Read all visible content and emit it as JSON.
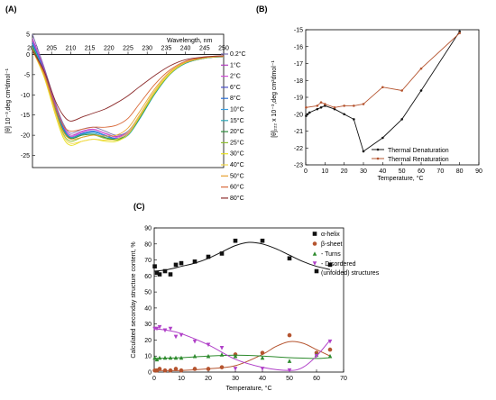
{
  "panels": {
    "A": {
      "label": "(A)"
    },
    "B": {
      "label": "(B)"
    },
    "C": {
      "label": "(C)"
    }
  },
  "chart_data": [
    {
      "panel": "A",
      "type": "line",
      "xlabel": "Wavelength, nm",
      "ylabel": "[θ] 10⁻³,deg cm²dmol⁻¹",
      "xlim": [
        200,
        250
      ],
      "ylim": [
        -28,
        5
      ],
      "xticks": [
        200,
        205,
        210,
        215,
        220,
        225,
        230,
        235,
        240,
        245,
        250
      ],
      "yticks": [
        5,
        0,
        -5,
        -10,
        -15,
        -20,
        -25
      ],
      "legend_position": "right",
      "x": [
        200,
        203,
        206,
        208,
        210,
        213,
        216,
        219,
        222,
        225,
        228,
        232,
        236,
        240,
        245,
        250
      ],
      "series": [
        {
          "name": "0.2°C",
          "color": "#7b6fb0",
          "values": [
            5.0,
            -3.0,
            -12.0,
            -17.0,
            -19.5,
            -18.5,
            -18.0,
            -19.0,
            -20.0,
            -19.0,
            -15.0,
            -9.0,
            -4.5,
            -2.0,
            -0.8,
            -0.5
          ]
        },
        {
          "name": "1°C",
          "color": "#b23fc0",
          "values": [
            4.0,
            -3.5,
            -12.5,
            -17.5,
            -20.0,
            -19.0,
            -18.5,
            -19.5,
            -20.3,
            -19.2,
            -15.2,
            -9.2,
            -4.6,
            -2.0,
            -0.8,
            -0.5
          ]
        },
        {
          "name": "2°C",
          "color": "#d24fd8",
          "values": [
            3.5,
            -4.0,
            -13.0,
            -18.0,
            -20.3,
            -19.2,
            -18.6,
            -19.6,
            -20.5,
            -19.5,
            -15.5,
            -9.4,
            -4.7,
            -2.1,
            -0.9,
            -0.5
          ]
        },
        {
          "name": "6°C",
          "color": "#4a4fc8",
          "values": [
            3.0,
            -4.0,
            -13.0,
            -18.0,
            -20.5,
            -19.5,
            -19.0,
            -20.0,
            -20.8,
            -19.8,
            -15.8,
            -9.6,
            -4.8,
            -2.1,
            -0.9,
            -0.6
          ]
        },
        {
          "name": "8°C",
          "color": "#2b6fd6",
          "values": [
            3.0,
            -4.2,
            -13.2,
            -18.2,
            -20.6,
            -19.6,
            -19.0,
            -20.0,
            -20.8,
            -19.8,
            -15.8,
            -9.6,
            -4.8,
            -2.2,
            -0.9,
            -0.6
          ]
        },
        {
          "name": "10°C",
          "color": "#3a9ee0",
          "values": [
            2.5,
            -4.5,
            -13.5,
            -18.5,
            -20.8,
            -19.8,
            -19.2,
            -20.2,
            -21.0,
            -20.0,
            -16.0,
            -9.8,
            -4.9,
            -2.2,
            -0.9,
            -0.6
          ]
        },
        {
          "name": "15°C",
          "color": "#2fa8b8",
          "values": [
            2.0,
            -4.5,
            -13.5,
            -18.5,
            -20.5,
            -19.8,
            -19.5,
            -20.5,
            -21.2,
            -20.0,
            -16.0,
            -9.8,
            -4.9,
            -2.2,
            -0.9,
            -0.6
          ]
        },
        {
          "name": "20°C",
          "color": "#2e8b3a",
          "values": [
            2.0,
            -4.8,
            -13.8,
            -18.8,
            -20.8,
            -20.0,
            -19.8,
            -20.6,
            -21.0,
            -19.8,
            -15.8,
            -9.6,
            -4.8,
            -2.1,
            -0.9,
            -0.5
          ]
        },
        {
          "name": "25°C",
          "color": "#8fbf2f",
          "values": [
            1.5,
            -5.0,
            -14.0,
            -19.5,
            -21.5,
            -20.5,
            -20.0,
            -20.8,
            -21.2,
            -19.8,
            -15.6,
            -9.5,
            -4.8,
            -2.1,
            -0.9,
            -0.5
          ]
        },
        {
          "name": "30°C",
          "color": "#e8e020",
          "values": [
            1.0,
            -5.5,
            -15.0,
            -20.5,
            -22.5,
            -21.5,
            -21.0,
            -21.5,
            -21.5,
            -19.8,
            -15.5,
            -9.4,
            -4.7,
            -2.0,
            -0.8,
            -0.5
          ]
        },
        {
          "name": "40°C",
          "color": "#f2d84a",
          "values": [
            1.0,
            -5.0,
            -14.5,
            -20.0,
            -22.0,
            -21.5,
            -21.0,
            -21.2,
            -21.0,
            -19.2,
            -15.0,
            -9.0,
            -4.5,
            -2.0,
            -0.8,
            -0.5
          ]
        },
        {
          "name": "50°C",
          "color": "#e8a030",
          "values": [
            1.0,
            -5.0,
            -14.0,
            -19.0,
            -21.0,
            -20.5,
            -20.0,
            -20.2,
            -20.0,
            -18.2,
            -14.2,
            -8.5,
            -4.2,
            -1.9,
            -0.8,
            -0.5
          ]
        },
        {
          "name": "60°C",
          "color": "#d86a3a",
          "values": [
            1.0,
            -4.5,
            -13.0,
            -17.5,
            -19.0,
            -18.5,
            -18.0,
            -18.0,
            -17.5,
            -15.8,
            -12.2,
            -7.4,
            -3.8,
            -1.7,
            -0.7,
            -0.4
          ]
        },
        {
          "name": "80°C",
          "color": "#8b2a2a",
          "values": [
            1.0,
            -4.0,
            -11.5,
            -15.0,
            -16.5,
            -15.5,
            -14.5,
            -13.5,
            -12.0,
            -10.2,
            -8.0,
            -5.2,
            -2.8,
            -1.3,
            -0.6,
            -0.3
          ]
        }
      ]
    },
    {
      "panel": "B",
      "type": "line",
      "xlabel": "Temperature, °C",
      "ylabel": "[θ]₂₂₂ x 10⁻³,deg cm²dmol⁻¹",
      "xlim": [
        0,
        90
      ],
      "ylim": [
        -23,
        -15
      ],
      "xticks": [
        0,
        10,
        20,
        30,
        40,
        50,
        60,
        70,
        80,
        90
      ],
      "yticks": [
        -15,
        -16,
        -17,
        -18,
        -19,
        -20,
        -21,
        -22,
        -23
      ],
      "legend_position": "bottom-right",
      "series": [
        {
          "name": "Thermal Denaturation",
          "color": "#111111",
          "x": [
            0.2,
            1,
            2,
            6,
            8,
            10,
            15,
            20,
            25,
            30,
            40,
            50,
            60,
            80
          ],
          "values": [
            -20.1,
            -20.0,
            -19.9,
            -19.7,
            -19.6,
            -19.5,
            -19.7,
            -20.0,
            -20.3,
            -22.2,
            -21.4,
            -20.3,
            -18.6,
            -15.1
          ]
        },
        {
          "name": "Thermal Renaturation",
          "color": "#b5542f",
          "x": [
            0.2,
            6,
            8,
            10,
            15,
            20,
            25,
            30,
            40,
            50,
            60,
            80
          ],
          "values": [
            -19.6,
            -19.5,
            -19.3,
            -19.4,
            -19.6,
            -19.5,
            -19.5,
            -19.4,
            -18.4,
            -18.6,
            -17.3,
            -15.2
          ]
        }
      ]
    },
    {
      "panel": "C",
      "type": "scatter",
      "xlabel": "Temperature, °C",
      "ylabel": "Calculated seconday structure content, %",
      "xlim": [
        0,
        70
      ],
      "ylim": [
        0,
        90
      ],
      "xticks": [
        0,
        10,
        20,
        30,
        40,
        50,
        60,
        70
      ],
      "yticks": [
        0,
        10,
        20,
        30,
        40,
        50,
        60,
        70,
        80,
        90
      ],
      "legend_position": "top-right",
      "series": [
        {
          "name": "α-helix",
          "marker": "square",
          "color": "#111111",
          "x": [
            0.2,
            1,
            2,
            4,
            6,
            8,
            10,
            15,
            20,
            25,
            30,
            40,
            50,
            60,
            65
          ],
          "values": [
            66,
            62,
            61,
            63,
            61,
            67,
            68,
            69,
            72,
            74,
            82,
            82,
            71,
            63,
            67
          ],
          "fit_x": [
            0,
            5,
            10,
            15,
            20,
            25,
            30,
            35,
            40,
            45,
            50,
            55,
            60,
            65
          ],
          "fit_values": [
            63,
            64,
            66,
            68,
            71,
            75,
            79,
            81,
            80,
            77,
            73,
            69,
            66,
            64
          ]
        },
        {
          "name": "β-sheet",
          "marker": "circle",
          "color": "#b5542f",
          "x": [
            0.2,
            1,
            2,
            4,
            6,
            8,
            10,
            15,
            20,
            25,
            30,
            40,
            50,
            60,
            65
          ],
          "values": [
            1,
            1,
            2,
            1,
            1,
            2,
            1,
            2,
            2,
            3,
            11,
            12,
            23,
            12,
            14
          ],
          "fit_x": [
            0,
            10,
            20,
            30,
            40,
            45,
            50,
            55,
            60,
            65
          ],
          "fit_values": [
            1,
            1,
            2,
            4,
            11,
            16,
            19,
            18,
            14,
            10
          ]
        },
        {
          "name": "- Turns",
          "marker": "triangle-up",
          "color": "#2e8b2e",
          "x": [
            0.2,
            1,
            2,
            4,
            6,
            8,
            10,
            15,
            20,
            25,
            30,
            40,
            50,
            60,
            65
          ],
          "values": [
            9,
            8,
            9,
            9,
            9,
            9,
            9,
            10,
            10,
            11,
            10,
            9,
            7,
            11,
            10
          ],
          "fit_x": [
            0,
            10,
            20,
            30,
            40,
            50,
            60,
            65
          ],
          "fit_values": [
            8.5,
            9,
            10,
            10.5,
            10,
            9,
            8.5,
            9
          ]
        },
        {
          "name": "- Disordered",
          "name2": "(unfolded) structures",
          "marker": "triangle-down",
          "color": "#b040c8",
          "x": [
            0.2,
            1,
            2,
            4,
            6,
            8,
            10,
            15,
            20,
            25,
            30,
            40,
            50,
            60,
            65
          ],
          "values": [
            27,
            27,
            28,
            26,
            27,
            22,
            23,
            19,
            17,
            15,
            2,
            2,
            1,
            10,
            19
          ],
          "fit_x": [
            0,
            5,
            10,
            20,
            30,
            40,
            50,
            55,
            60,
            65
          ],
          "fit_values": [
            27,
            26,
            24,
            17,
            8,
            3,
            1,
            3,
            10,
            20
          ]
        }
      ]
    }
  ]
}
